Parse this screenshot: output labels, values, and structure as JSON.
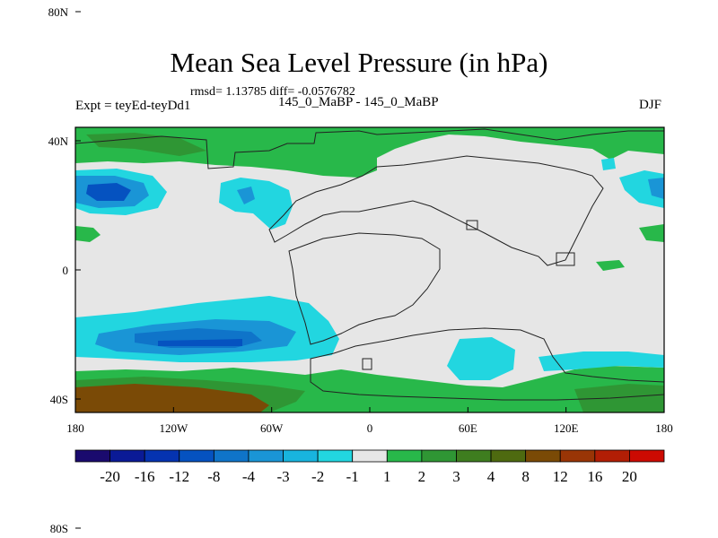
{
  "title": "Mean Sea Level Pressure (in hPa)",
  "stats": "rmsd= 1.13785 diff= -0.0576782",
  "experiment": "Expt = teyEd-teyDd1",
  "experiment_names": "145_0_MaBP - 145_0_MaBP",
  "season": "DJF",
  "map": {
    "lon_ticks": [
      "180",
      "120W",
      "60W",
      "0",
      "60E",
      "120E",
      "180"
    ],
    "lat_ticks": [
      "80N",
      "40N",
      "0",
      "40S",
      "80S"
    ]
  },
  "colorbar": {
    "labels": [
      "-20",
      "-16",
      "-12",
      "-8",
      "-4",
      "-3",
      "-2",
      "-1",
      "1",
      "2",
      "3",
      "4",
      "8",
      "12",
      "16",
      "20"
    ],
    "colors": [
      "#1a0a6e",
      "#0a1a96",
      "#0533b0",
      "#0552c0",
      "#0f74c9",
      "#1a95d6",
      "#18b4de",
      "#22d6e0",
      "#e6e6e6",
      "#28b84a",
      "#2f9634",
      "#3e7d1f",
      "#4e6a10",
      "#7a4a06",
      "#993506",
      "#b21e05",
      "#cc0a02"
    ]
  },
  "colors": {
    "neutral": "#e6e6e6",
    "pos1": "#28b84a",
    "pos2": "#2f9634",
    "pos4": "#7a4a06",
    "neg1": "#22d6e0",
    "neg2": "#18b4de",
    "neg3": "#1a95d6",
    "neg4": "#0f74c9",
    "neg5": "#0552c0"
  }
}
